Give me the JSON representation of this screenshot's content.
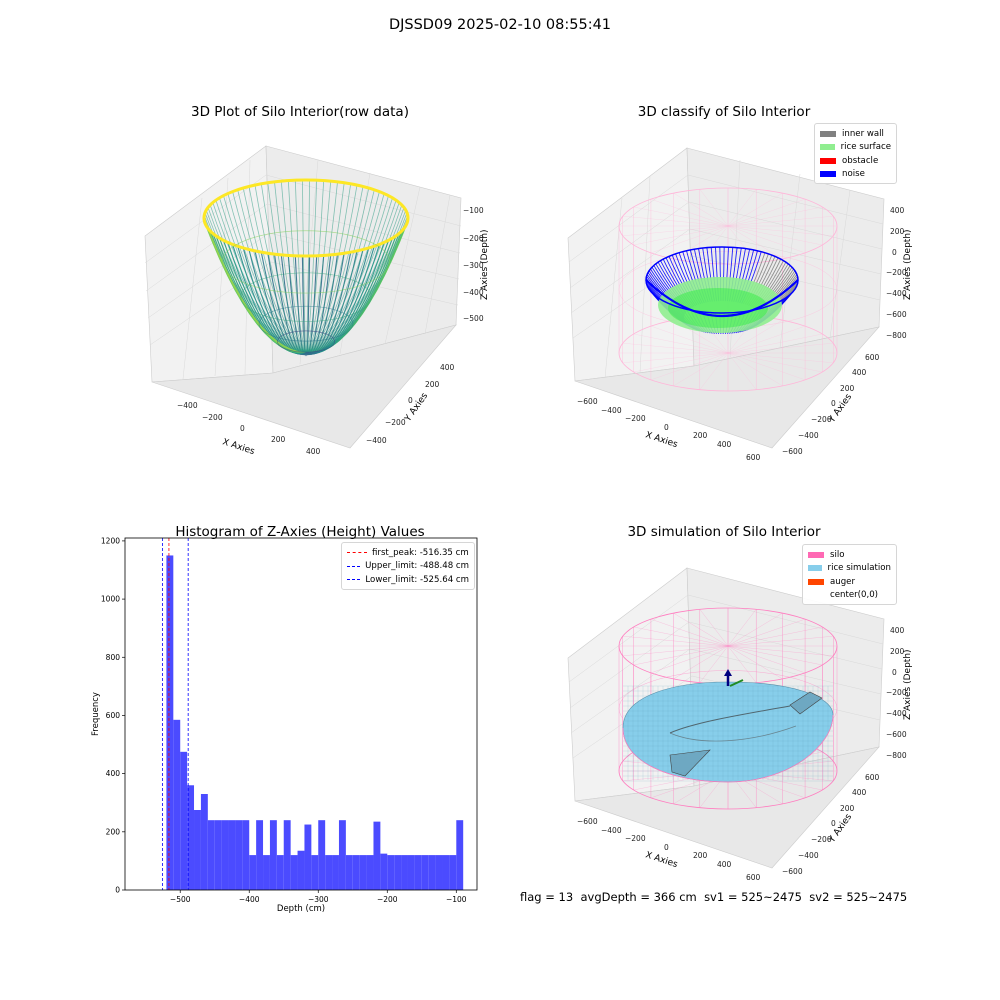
{
  "suptitle": "DJSSD09 2025-02-10 08:55:41",
  "status": {
    "flag": "flag = 13",
    "avg_depth": "avgDepth = 366 cm",
    "sv1": "sv1 = 525~2475",
    "sv2": "sv2 = 525~2475"
  },
  "colors": {
    "inner_wall": "#808080",
    "rice_surface": "#90ee90",
    "obstacle": "#ff0000",
    "noise": "#0000ff",
    "silo": "#ff69b4",
    "rice_simulation": "#87ceeb",
    "auger": "#ff4500",
    "hist_bar": "#4b4bff"
  },
  "chart_data": [
    {
      "type": "scatter",
      "title": "3D Plot of Silo Interior(row data)",
      "xlabel": "X Axies",
      "ylabel": "Y Axies",
      "zlabel": "Z Axies (Depth)",
      "xlim": [
        -500,
        500
      ],
      "ylim": [
        -500,
        500
      ],
      "zlim": [
        -550,
        -80
      ],
      "x_ticks": [
        "−400",
        "−200",
        "0",
        "200",
        "400"
      ],
      "y_ticks": [
        "−400",
        "−200",
        "0",
        "200",
        "400"
      ],
      "z_ticks": [
        "−500",
        "−400",
        "−300",
        "−200",
        "−100"
      ],
      "surface": "paraboloid bowl, rim radius 500, rim depth -100, bottom depth -520",
      "colormap": "viridis"
    },
    {
      "type": "scatter",
      "title": "3D classify of Silo Interior",
      "xlabel": "X Axies",
      "ylabel": "Y Axies",
      "zlabel": "Z Axies (Depth)",
      "xlim": [
        -650,
        650
      ],
      "ylim": [
        -650,
        650
      ],
      "zlim": [
        -850,
        450
      ],
      "x_ticks": [
        "−600",
        "−400",
        "−200",
        "0",
        "200",
        "400",
        "600"
      ],
      "y_ticks": [
        "−600",
        "−400",
        "−200",
        "0",
        "200",
        "400",
        "600"
      ],
      "z_ticks": [
        "−800",
        "−600",
        "−400",
        "−200",
        "0",
        "200",
        "400"
      ],
      "legend": [
        "inner wall",
        "rice surface",
        "obstacle",
        "noise"
      ],
      "legend_position": "upper right"
    },
    {
      "type": "bar",
      "title": "Histogram of Z-Axies (Height) Values",
      "xlabel": "Depth (cm)",
      "ylabel": "Frequency",
      "xlim": [
        -580,
        -70
      ],
      "ylim": [
        0,
        1210
      ],
      "x_ticks": [
        {
          "value": -500,
          "label": "−500"
        },
        {
          "value": -400,
          "label": "−400"
        },
        {
          "value": -300,
          "label": "−300"
        },
        {
          "value": -200,
          "label": "−200"
        },
        {
          "value": -100,
          "label": "−100"
        }
      ],
      "y_ticks": [
        0,
        200,
        400,
        600,
        800,
        1000,
        1200
      ],
      "bin_edges": [
        -520,
        -510,
        -500,
        -490,
        -480,
        -470,
        -460,
        -450,
        -440,
        -430,
        -420,
        -410,
        -400,
        -390,
        -380,
        -370,
        -360,
        -350,
        -340,
        -330,
        -320,
        -310,
        -300,
        -290,
        -280,
        -270,
        -260,
        -250,
        -240,
        -230,
        -220,
        -210,
        -200,
        -190,
        -180,
        -170,
        -160,
        -150,
        -140,
        -130,
        -120,
        -110,
        -100,
        -90
      ],
      "values": [
        1150,
        585,
        475,
        360,
        275,
        330,
        240,
        240,
        240,
        240,
        240,
        240,
        120,
        240,
        120,
        240,
        120,
        240,
        120,
        135,
        225,
        120,
        240,
        120,
        120,
        240,
        120,
        120,
        120,
        120,
        235,
        125,
        120,
        120,
        120,
        120,
        120,
        120,
        120,
        120,
        120,
        120,
        240
      ],
      "vlines": [
        {
          "name": "first_peak: -516.35 cm",
          "x": -516.35,
          "color": "#ff0000"
        },
        {
          "name": "Upper_limit: -488.48 cm",
          "x": -488.48,
          "color": "#0000ff"
        },
        {
          "name": "Lower_limit: -525.64 cm",
          "x": -525.64,
          "color": "#0000ff"
        }
      ],
      "legend_position": "upper right"
    },
    {
      "type": "scatter",
      "title": "3D simulation of Silo Interior",
      "xlabel": "X Axies",
      "ylabel": "Y Axies",
      "zlabel": "Z Axies (Depth)",
      "xlim": [
        -650,
        650
      ],
      "ylim": [
        -650,
        650
      ],
      "zlim": [
        -850,
        450
      ],
      "x_ticks": [
        "−600",
        "−400",
        "−200",
        "0",
        "200",
        "400",
        "600"
      ],
      "y_ticks": [
        "−600",
        "−400",
        "−200",
        "0",
        "200",
        "400",
        "600"
      ],
      "z_ticks": [
        "−800",
        "−600",
        "−400",
        "−200",
        "0",
        "200",
        "400"
      ],
      "legend": [
        "silo",
        "rice simulation",
        "auger",
        "center(0,0)"
      ],
      "legend_position": "upper right"
    }
  ]
}
